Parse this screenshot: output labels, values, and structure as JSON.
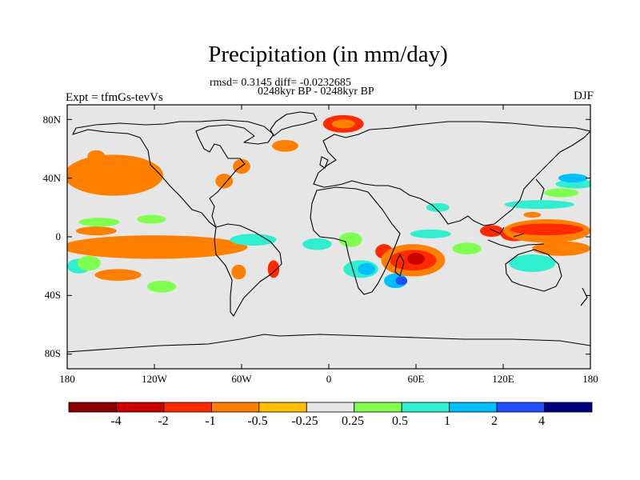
{
  "title": "Precipitation (in mm/day)",
  "stats_line": "rmsd= 0.3145 diff= -0.0232685",
  "subtitle": "0248kyr BP - 0248kyr BP",
  "left_label": "Expt = tfmGs-tevVs",
  "right_label": "DJF",
  "chart_data": {
    "type": "heatmap",
    "title": "Precipitation (in mm/day)",
    "variable": "precipitation difference",
    "units": "mm/day",
    "season": "DJF",
    "experiment": "tfmGs-tevVs",
    "rmsd": 0.3145,
    "diff": -0.0232685,
    "x_axis": {
      "range": [
        -180,
        180
      ],
      "ticks": [
        -180,
        -120,
        -60,
        0,
        60,
        120,
        180
      ],
      "tick_labels": [
        "180",
        "120W",
        "60W",
        "0",
        "60E",
        "120E",
        "180"
      ]
    },
    "y_axis": {
      "range": [
        -90,
        90
      ],
      "ticks": [
        80,
        40,
        0,
        -40,
        -80
      ],
      "tick_labels": [
        "80N",
        "40N",
        "0",
        "40S",
        "80S"
      ]
    },
    "colorbar": {
      "levels": [
        -4,
        -2,
        -1,
        -0.5,
        -0.25,
        0.25,
        0.5,
        1,
        2,
        4
      ],
      "tick_labels": [
        "-4",
        "-2",
        "-1",
        "-0.5",
        "-0.25",
        "0.25",
        "0.5",
        "1",
        "2",
        "4"
      ],
      "colors": [
        "#8b0000",
        "#cc0000",
        "#ff2a00",
        "#ff7f00",
        "#ffbf00",
        "#e6e6e6",
        "#7fff4f",
        "#2fefd0",
        "#00bfff",
        "#1f4fff",
        "#00007f"
      ]
    },
    "anomaly_regions": [
      {
        "lon": 10,
        "lat": 77,
        "rlon": 14,
        "rlat": 6,
        "value": -1
      },
      {
        "lon": 10,
        "lat": 77,
        "rlon": 8,
        "rlat": 3,
        "value": -0.5
      },
      {
        "lon": -148,
        "lat": 42,
        "rlon": 30,
        "rlat": 9,
        "value": -1
      },
      {
        "lon": -148,
        "lat": 42,
        "rlon": 34,
        "rlat": 14,
        "value": -0.5
      },
      {
        "lon": -160,
        "lat": 55,
        "rlon": 6,
        "rlat": 4,
        "value": -0.5
      },
      {
        "lon": -72,
        "lat": 38,
        "rlon": 6,
        "rlat": 5,
        "value": -0.5
      },
      {
        "lon": -60,
        "lat": 48,
        "rlon": 6,
        "rlat": 5,
        "value": -0.5
      },
      {
        "lon": -30,
        "lat": 62,
        "rlon": 9,
        "rlat": 4,
        "value": -0.5
      },
      {
        "lon": -158,
        "lat": 10,
        "rlon": 14,
        "rlat": 3,
        "value": 0.25
      },
      {
        "lon": -122,
        "lat": 12,
        "rlon": 10,
        "rlat": 3,
        "value": 0.25
      },
      {
        "lon": -120,
        "lat": -7,
        "rlon": 58,
        "rlat": 5,
        "value": -1
      },
      {
        "lon": -120,
        "lat": -7,
        "rlon": 64,
        "rlat": 8,
        "value": -0.5
      },
      {
        "lon": -160,
        "lat": 4,
        "rlon": 14,
        "rlat": 3,
        "value": -0.5
      },
      {
        "lon": -172,
        "lat": -20,
        "rlon": 8,
        "rlat": 5,
        "value": 0.5
      },
      {
        "lon": -165,
        "lat": -18,
        "rlon": 8,
        "rlat": 5,
        "value": 0.25
      },
      {
        "lon": -145,
        "lat": -26,
        "rlon": 16,
        "rlat": 4,
        "value": -0.5
      },
      {
        "lon": -115,
        "lat": -34,
        "rlon": 10,
        "rlat": 4,
        "value": 0.25
      },
      {
        "lon": -52,
        "lat": -2,
        "rlon": 16,
        "rlat": 4,
        "value": 0.5
      },
      {
        "lon": -38,
        "lat": -22,
        "rlon": 4,
        "rlat": 6,
        "value": -1
      },
      {
        "lon": -62,
        "lat": -24,
        "rlon": 5,
        "rlat": 5,
        "value": -0.5
      },
      {
        "lon": -8,
        "lat": -5,
        "rlon": 10,
        "rlat": 4,
        "value": 0.5
      },
      {
        "lon": 15,
        "lat": -2,
        "rlon": 8,
        "rlat": 5,
        "value": 0.25
      },
      {
        "lon": 22,
        "lat": -22,
        "rlon": 12,
        "rlat": 6,
        "value": 0.5
      },
      {
        "lon": 26,
        "lat": -22,
        "rlon": 6,
        "rlat": 4,
        "value": 1
      },
      {
        "lon": 38,
        "lat": -10,
        "rlon": 6,
        "rlat": 5,
        "value": -1
      },
      {
        "lon": 58,
        "lat": -16,
        "rlon": 22,
        "rlat": 11,
        "value": -0.5
      },
      {
        "lon": 58,
        "lat": -16,
        "rlon": 16,
        "rlat": 7,
        "value": -1
      },
      {
        "lon": 60,
        "lat": -15,
        "rlon": 6,
        "rlat": 4,
        "value": -2
      },
      {
        "lon": 46,
        "lat": -30,
        "rlon": 8,
        "rlat": 5,
        "value": 1
      },
      {
        "lon": 50,
        "lat": -30,
        "rlon": 4,
        "rlat": 3,
        "value": 2
      },
      {
        "lon": 70,
        "lat": 2,
        "rlon": 14,
        "rlat": 3,
        "value": 0.5
      },
      {
        "lon": 95,
        "lat": -8,
        "rlon": 10,
        "rlat": 4,
        "value": 0.25
      },
      {
        "lon": 75,
        "lat": 20,
        "rlon": 8,
        "rlat": 3,
        "value": 0.5
      },
      {
        "lon": 112,
        "lat": 4,
        "rlon": 8,
        "rlat": 4,
        "value": -1
      },
      {
        "lon": 128,
        "lat": 2,
        "rlon": 10,
        "rlat": 5,
        "value": -1
      },
      {
        "lon": 150,
        "lat": 4,
        "rlon": 30,
        "rlat": 8,
        "value": -0.5
      },
      {
        "lon": 150,
        "lat": 5,
        "rlon": 25,
        "rlat": 4,
        "value": -1
      },
      {
        "lon": 160,
        "lat": -8,
        "rlon": 20,
        "rlat": 5,
        "value": -0.5
      },
      {
        "lon": 140,
        "lat": -18,
        "rlon": 16,
        "rlat": 6,
        "value": 0.5
      },
      {
        "lon": 145,
        "lat": 22,
        "rlon": 24,
        "rlat": 3,
        "value": 0.5
      },
      {
        "lon": 170,
        "lat": 36,
        "rlon": 14,
        "rlat": 3,
        "value": 0.5
      },
      {
        "lon": 168,
        "lat": 40,
        "rlon": 10,
        "rlat": 3,
        "value": 1
      },
      {
        "lon": 160,
        "lat": 30,
        "rlon": 12,
        "rlat": 3,
        "value": 0.25
      },
      {
        "lon": 140,
        "lat": 15,
        "rlon": 6,
        "rlat": 2,
        "value": -0.5
      }
    ]
  }
}
